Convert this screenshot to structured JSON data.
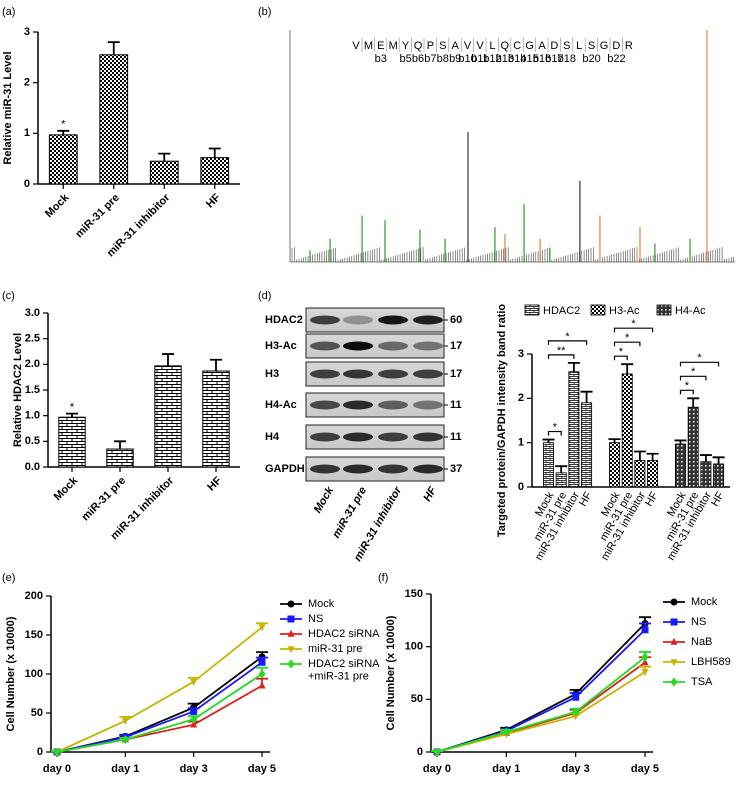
{
  "chart_data": [
    {
      "type": "bar",
      "panel": "(a)",
      "ylabel": "Relative miR-31 Level",
      "categories": [
        "Mock",
        "miR-31 pre",
        "miR-31 inhibitor",
        "HF"
      ],
      "values": [
        0.97,
        2.55,
        0.45,
        0.52
      ],
      "errors": [
        0.08,
        0.25,
        0.15,
        0.18
      ],
      "significance": [
        "*",
        null,
        null,
        null
      ],
      "pattern": "checker",
      "ylim": [
        0,
        3
      ],
      "yticks": [
        0,
        1,
        2,
        3
      ]
    },
    {
      "type": "spectrum",
      "panel": "(b)",
      "sequence": [
        "V",
        "M",
        "E",
        "M",
        "Y",
        "Q",
        "P",
        "S",
        "A",
        "V",
        "V",
        "L",
        "Q",
        "C",
        "G",
        "A",
        "D",
        "S",
        "L",
        "S",
        "G",
        "D",
        "R"
      ],
      "highlight": "C",
      "ions": [
        "b3",
        "b5",
        "b6",
        "b7",
        "b8",
        "b9",
        "b10",
        "b11",
        "b12",
        "b13",
        "b14",
        "b15",
        "b16",
        "b17",
        "b18",
        "b20",
        "b22"
      ],
      "x": [
        290,
        380,
        524,
        627,
        784,
        897,
        1000,
        1121,
        1166,
        1252,
        1324,
        1368,
        1503,
        1593,
        1773,
        1840,
        1998,
        2074
      ],
      "values": [
        5,
        10,
        20,
        18,
        14,
        10,
        56,
        15,
        12,
        25,
        10,
        6,
        35,
        20,
        15,
        8,
        10,
        100
      ],
      "colors": [
        "#2e9b2e",
        "#2e9b2e",
        "#2e9b2e",
        "#2e9b2e",
        "#2e9b2e",
        "#2e9b2e",
        "#333333",
        "#2e9b2e",
        "#e8803c",
        "#2e9b2e",
        "#e8803c",
        "#2e9b2e",
        "#333333",
        "#e8803c",
        "#e8803c",
        "#2e9b2e",
        "#2e9b2e",
        "#e8803c"
      ],
      "xlim": [
        200,
        2200
      ],
      "ylim": [
        0,
        100
      ]
    },
    {
      "type": "bar",
      "panel": "(c)",
      "ylabel": "Relative HDAC2 Level",
      "categories": [
        "Mock",
        "miR-31 pre",
        "miR-31 inhibitor",
        "HF"
      ],
      "values": [
        0.97,
        0.35,
        1.97,
        1.87
      ],
      "errors": [
        0.07,
        0.15,
        0.23,
        0.22
      ],
      "significance": [
        "*",
        null,
        null,
        null
      ],
      "pattern": "brick",
      "ylim": [
        0,
        3
      ],
      "yticks": [
        {
          "value": 0,
          "label": "0.0"
        },
        {
          "value": 0.5,
          "label": "0.5"
        },
        {
          "value": 1,
          "label": "1.0"
        },
        {
          "value": 1.5,
          "label": "1.5"
        },
        {
          "value": 2,
          "label": "2.0"
        },
        {
          "value": 2.5,
          "label": "2.5"
        },
        {
          "value": 3,
          "label": "3.0"
        }
      ]
    },
    {
      "type": "blot",
      "panel": "(d)",
      "rows": [
        "HDAC2",
        "H3-Ac",
        "H3",
        "H4-Ac",
        "H4",
        "GAPDH"
      ],
      "sizes": [
        60,
        17,
        17,
        11,
        11,
        37
      ],
      "lanes": [
        "Mock",
        "miR-31 pre",
        "miR-31 inhibitor",
        "HF"
      ]
    },
    {
      "type": "grouped_bar",
      "ylabel": "Targeted protein/GAPDH intensity band ratio",
      "categories": [
        "Mock",
        "miR-31 pre",
        "miR-31 inhibitor",
        "HF"
      ],
      "series": [
        {
          "name": "HDAC2",
          "pattern": "hbrick",
          "values": [
            1.0,
            0.32,
            2.6,
            1.9
          ],
          "errors": [
            0.07,
            0.15,
            0.2,
            0.25
          ]
        },
        {
          "name": "H3-Ac",
          "pattern": "checker",
          "values": [
            1.0,
            2.55,
            0.6,
            0.6
          ],
          "errors": [
            0.08,
            0.22,
            0.2,
            0.15
          ]
        },
        {
          "name": "H4-Ac",
          "pattern": "dark",
          "values": [
            0.97,
            1.8,
            0.57,
            0.52
          ],
          "errors": [
            0.08,
            0.2,
            0.15,
            0.15
          ]
        }
      ],
      "comparisons": [
        {
          "series": 0,
          "from": 0,
          "to": 1,
          "label": "*"
        },
        {
          "series": 0,
          "from": 0,
          "to": 2,
          "label": "**"
        },
        {
          "series": 0,
          "from": 0,
          "to": 3,
          "label": "*"
        },
        {
          "series": 1,
          "from": 0,
          "to": 1,
          "label": "*"
        },
        {
          "series": 1,
          "from": 0,
          "to": 2,
          "label": "*"
        },
        {
          "series": 1,
          "from": 0,
          "to": 3,
          "label": "*"
        },
        {
          "series": 2,
          "from": 0,
          "to": 1,
          "label": "*"
        },
        {
          "series": 2,
          "from": 0,
          "to": 2,
          "label": "*"
        },
        {
          "series": 2,
          "from": 0,
          "to": 3,
          "label": "*"
        }
      ],
      "ylim": [
        0,
        3
      ],
      "yticks": [
        0,
        1,
        2,
        3
      ]
    },
    {
      "type": "line",
      "panel": "(e)",
      "ylabel": "Cell Number (x 10000)",
      "categories": [
        "day 0",
        "day 1",
        "day 3",
        "day 5"
      ],
      "series": [
        {
          "name": "Mock",
          "color": "#000000",
          "marker": "circle",
          "values": [
            0,
            20,
            57,
            122
          ],
          "errors": [
            1,
            2,
            5,
            6
          ]
        },
        {
          "name": "NS",
          "color": "#1a1aff",
          "marker": "square",
          "values": [
            0,
            19,
            52,
            115
          ],
          "errors": [
            1,
            2,
            4,
            6
          ]
        },
        {
          "name": "HDAC2 siRNA",
          "color": "#e02020",
          "marker": "triangle",
          "values": [
            0,
            16,
            35,
            85
          ],
          "errors": [
            1,
            2,
            4,
            9
          ]
        },
        {
          "name": "miR-31 pre",
          "color": "#c8b400",
          "marker": "triangle-down",
          "values": [
            0,
            40,
            90,
            160
          ],
          "errors": [
            1,
            5,
            5,
            5
          ]
        },
        {
          "name": "HDAC2 siRNA\n+miR-31 pre",
          "color": "#22dd22",
          "marker": "diamond",
          "values": [
            0,
            16,
            42,
            100
          ],
          "errors": [
            1,
            2,
            4,
            8
          ]
        }
      ],
      "ylim": [
        0,
        200
      ],
      "yticks": [
        0,
        50,
        100,
        150,
        200
      ]
    },
    {
      "type": "line",
      "panel": "(f)",
      "ylabel": "Cell Number (x 10000)",
      "categories": [
        "day 0",
        "day 1",
        "day 3",
        "day 5"
      ],
      "series": [
        {
          "name": "Mock",
          "color": "#000000",
          "marker": "circle",
          "values": [
            0,
            21,
            55,
            122
          ],
          "errors": [
            1,
            2,
            4,
            6
          ]
        },
        {
          "name": "NS",
          "color": "#1a1aff",
          "marker": "square",
          "values": [
            0,
            20,
            52,
            116
          ],
          "errors": [
            1,
            2,
            4,
            6
          ]
        },
        {
          "name": "NaB",
          "color": "#e02020",
          "marker": "triangle",
          "values": [
            0,
            18,
            37,
            85
          ],
          "errors": [
            1,
            2,
            3,
            5
          ]
        },
        {
          "name": "LBH589",
          "color": "#c8b400",
          "marker": "triangle-down",
          "values": [
            0,
            17,
            34,
            76
          ],
          "errors": [
            1,
            2,
            3,
            5
          ]
        },
        {
          "name": "TSA",
          "color": "#22dd22",
          "marker": "diamond",
          "values": [
            0,
            19,
            38,
            90
          ],
          "errors": [
            1,
            2,
            3,
            5
          ]
        }
      ],
      "ylim": [
        0,
        150
      ],
      "yticks": [
        0,
        50,
        100,
        150
      ]
    }
  ]
}
